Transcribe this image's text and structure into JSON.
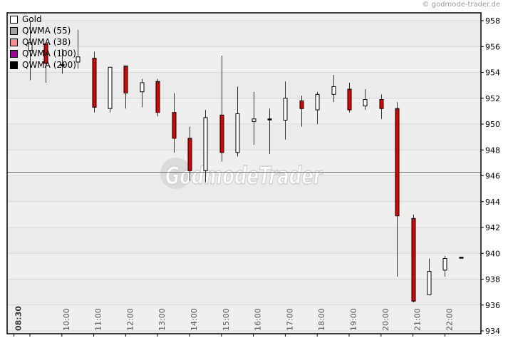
{
  "copyright": "© godmode-trader.de",
  "watermark": "GodmodeTrader",
  "chart_data": {
    "type": "candlestick",
    "title": "",
    "xlabel": "",
    "ylabel": "",
    "ylim": [
      934,
      958
    ],
    "yticks": [
      934,
      936,
      938,
      940,
      942,
      944,
      946,
      948,
      950,
      952,
      954,
      956,
      958
    ],
    "xtick_labels": [
      "08:30",
      "10:00",
      "11:00",
      "12:00",
      "13:00",
      "14:00",
      "15:00",
      "16:00",
      "17:00",
      "18:00",
      "19:00",
      "20:00",
      "21:00",
      "22:00"
    ],
    "grid": true,
    "legend_position": "top-left",
    "legend": [
      {
        "name": "Gold",
        "color": "#ffffff"
      },
      {
        "name": "QWMA (55)",
        "color": "#a0a0a0"
      },
      {
        "name": "QWMA (38)",
        "color": "#ff8c8c"
      },
      {
        "name": "QWMA (100)",
        "color": "#a000a0"
      },
      {
        "name": "QWMA (200)",
        "color": "#000000"
      }
    ],
    "colors": {
      "up": "#ffffff",
      "down": "#e00000",
      "doji": "#000000",
      "hline": "#5a5aff"
    },
    "hline": 946.3,
    "interval_minutes": 30,
    "candles": [
      {
        "t": "09:00",
        "o": 955.7,
        "h": 957.9,
        "l": 953.4,
        "c": 956.3
      },
      {
        "t": "09:30",
        "o": 956.2,
        "h": 956.2,
        "l": 953.2,
        "c": 954.7
      },
      {
        "t": "10:00",
        "o": 954.6,
        "h": 955.8,
        "l": 953.9,
        "c": 954.6
      },
      {
        "t": "10:30",
        "o": 954.8,
        "h": 957.3,
        "l": 954.3,
        "c": 955.2
      },
      {
        "t": "11:00",
        "o": 955.1,
        "h": 955.6,
        "l": 950.9,
        "c": 951.3
      },
      {
        "t": "11:30",
        "o": 951.2,
        "h": 954.4,
        "l": 950.9,
        "c": 954.4
      },
      {
        "t": "12:00",
        "o": 954.5,
        "h": 954.5,
        "l": 951.2,
        "c": 952.4
      },
      {
        "t": "12:30",
        "o": 952.5,
        "h": 953.5,
        "l": 951.3,
        "c": 953.2
      },
      {
        "t": "13:00",
        "o": 953.3,
        "h": 953.5,
        "l": 950.6,
        "c": 950.9
      },
      {
        "t": "13:30",
        "o": 950.9,
        "h": 952.4,
        "l": 947.8,
        "c": 948.9
      },
      {
        "t": "14:00",
        "o": 948.9,
        "h": 949.8,
        "l": 945.6,
        "c": 946.4
      },
      {
        "t": "14:30",
        "o": 946.4,
        "h": 951.1,
        "l": 945.5,
        "c": 950.5
      },
      {
        "t": "15:00",
        "o": 950.7,
        "h": 955.3,
        "l": 947.1,
        "c": 947.8
      },
      {
        "t": "15:30",
        "o": 947.8,
        "h": 952.9,
        "l": 947.5,
        "c": 950.8
      },
      {
        "t": "16:00",
        "o": 950.2,
        "h": 952.5,
        "l": 948.4,
        "c": 950.4
      },
      {
        "t": "16:30",
        "o": 950.4,
        "h": 951.2,
        "l": 947.7,
        "c": 950.4
      },
      {
        "t": "17:00",
        "o": 950.3,
        "h": 953.3,
        "l": 948.8,
        "c": 952.0
      },
      {
        "t": "17:30",
        "o": 951.8,
        "h": 952.2,
        "l": 949.8,
        "c": 951.2
      },
      {
        "t": "18:00",
        "o": 951.1,
        "h": 952.5,
        "l": 950.0,
        "c": 952.3
      },
      {
        "t": "18:30",
        "o": 952.3,
        "h": 953.8,
        "l": 951.7,
        "c": 952.9
      },
      {
        "t": "19:00",
        "o": 952.7,
        "h": 953.2,
        "l": 950.9,
        "c": 951.1
      },
      {
        "t": "19:30",
        "o": 951.4,
        "h": 952.7,
        "l": 951.1,
        "c": 951.9
      },
      {
        "t": "20:00",
        "o": 951.9,
        "h": 952.3,
        "l": 950.4,
        "c": 951.2
      },
      {
        "t": "20:30",
        "o": 951.2,
        "h": 951.7,
        "l": 938.2,
        "c": 942.9
      },
      {
        "t": "21:00",
        "o": 942.7,
        "h": 943.0,
        "l": 936.2,
        "c": 936.3
      },
      {
        "t": "21:30",
        "o": 936.8,
        "h": 939.6,
        "l": 936.8,
        "c": 938.6
      },
      {
        "t": "22:00",
        "o": 938.7,
        "h": 939.8,
        "l": 938.2,
        "c": 939.6
      },
      {
        "t": "22:30",
        "o": 939.7,
        "h": 939.7,
        "l": 939.7,
        "c": 939.7
      }
    ]
  }
}
